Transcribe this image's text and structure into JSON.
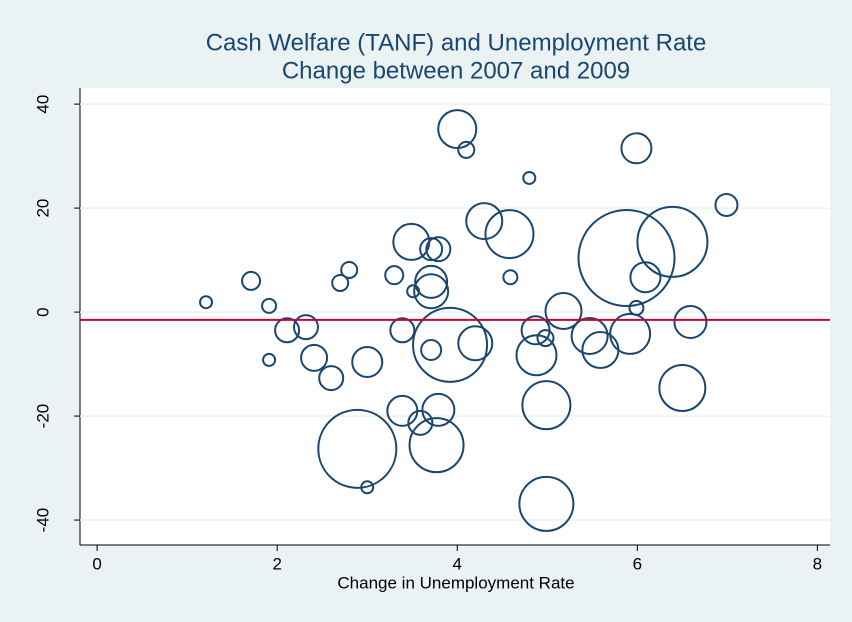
{
  "chart_data": {
    "type": "bubble",
    "title": [
      "Cash Welfare (TANF) and Unemployment Rate",
      "Change between 2007 and 2009"
    ],
    "x_label": "Change in Unemployment Rate",
    "x": [
      1.21,
      1.71,
      1.91,
      1.91,
      2.11,
      2.32,
      2.41,
      2.6,
      2.7,
      2.8,
      3.0,
      3.0,
      2.89,
      3.3,
      3.39,
      3.39,
      3.49,
      3.51,
      3.59,
      3.71,
      3.79,
      3.71,
      3.71,
      3.71,
      3.79,
      3.77,
      3.92,
      4.0,
      4.1,
      4.2,
      4.3,
      4.58,
      4.59,
      4.8,
      4.87,
      4.98,
      4.88,
      4.99,
      4.99,
      5.18,
      5.47,
      5.59,
      5.92,
      5.99,
      5.99,
      6.09,
      5.88,
      6.39,
      6.5,
      6.59,
      6.99
    ],
    "values": [
      1.9,
      6.0,
      1.2,
      -9.2,
      -3.5,
      -2.9,
      -8.8,
      -12.7,
      5.6,
      8.1,
      -9.6,
      -33.7,
      -26.3,
      7.1,
      -3.5,
      -19.0,
      13.5,
      4.0,
      -21.3,
      12.1,
      12.1,
      5.8,
      4.0,
      -7.3,
      -18.8,
      -25.6,
      -6.3,
      35.2,
      31.2,
      -6.0,
      17.5,
      15.0,
      6.7,
      25.8,
      -3.5,
      -5.0,
      -8.3,
      -17.9,
      -36.9,
      0.2,
      -4.6,
      -7.3,
      -4.2,
      0.8,
      31.5,
      6.7,
      10.4,
      13.5,
      -14.6,
      -1.9,
      20.6
    ],
    "sizes": [
      36,
      81,
      49,
      36,
      144,
      144,
      169,
      144,
      64,
      64,
      225,
      36,
      1521,
      81,
      144,
      225,
      324,
      36,
      144,
      121,
      144,
      256,
      289,
      100,
      256,
      729,
      1369,
      361,
      64,
      289,
      324,
      576,
      49,
      36,
      196,
      64,
      400,
      576,
      729,
      324,
      324,
      324,
      400,
      49,
      225,
      225,
      2304,
      1225,
      529,
      256,
      121
    ],
    "color": "#1a476f",
    "reference_line": {
      "value": -1.5,
      "color": "#c10534"
    },
    "xlim": [
      -0.19,
      8.14
    ],
    "xticks": [
      0,
      2,
      4,
      6,
      8
    ],
    "ylim": [
      -44.8,
      43.1
    ],
    "yticks": [
      -40,
      -20,
      0,
      20,
      40
    ],
    "grid": true
  }
}
